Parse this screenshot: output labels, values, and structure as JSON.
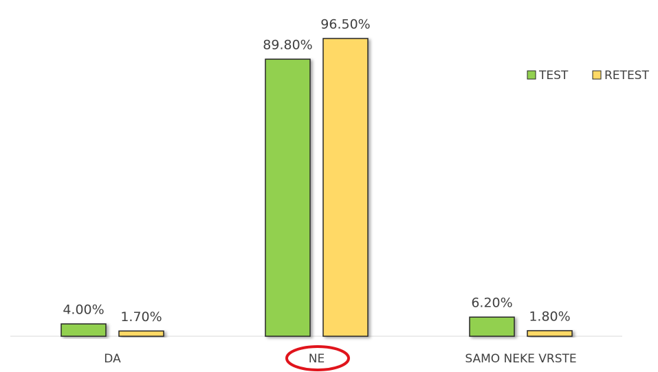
{
  "chart_data": {
    "type": "bar",
    "categories": [
      "DA",
      "NE",
      "SAMO NEKE VRSTE"
    ],
    "series": [
      {
        "name": "TEST",
        "color": "#92d050",
        "values": [
          4.0,
          89.8,
          6.2
        ],
        "value_labels": [
          "4.00%",
          "89.80%",
          "6.20%"
        ]
      },
      {
        "name": "RETEST",
        "color": "#ffd966",
        "values": [
          1.7,
          96.5,
          1.8
        ],
        "value_labels": [
          "1.70%",
          "96.50%",
          "1.80%"
        ]
      }
    ],
    "legend": "top-right"
  }
}
